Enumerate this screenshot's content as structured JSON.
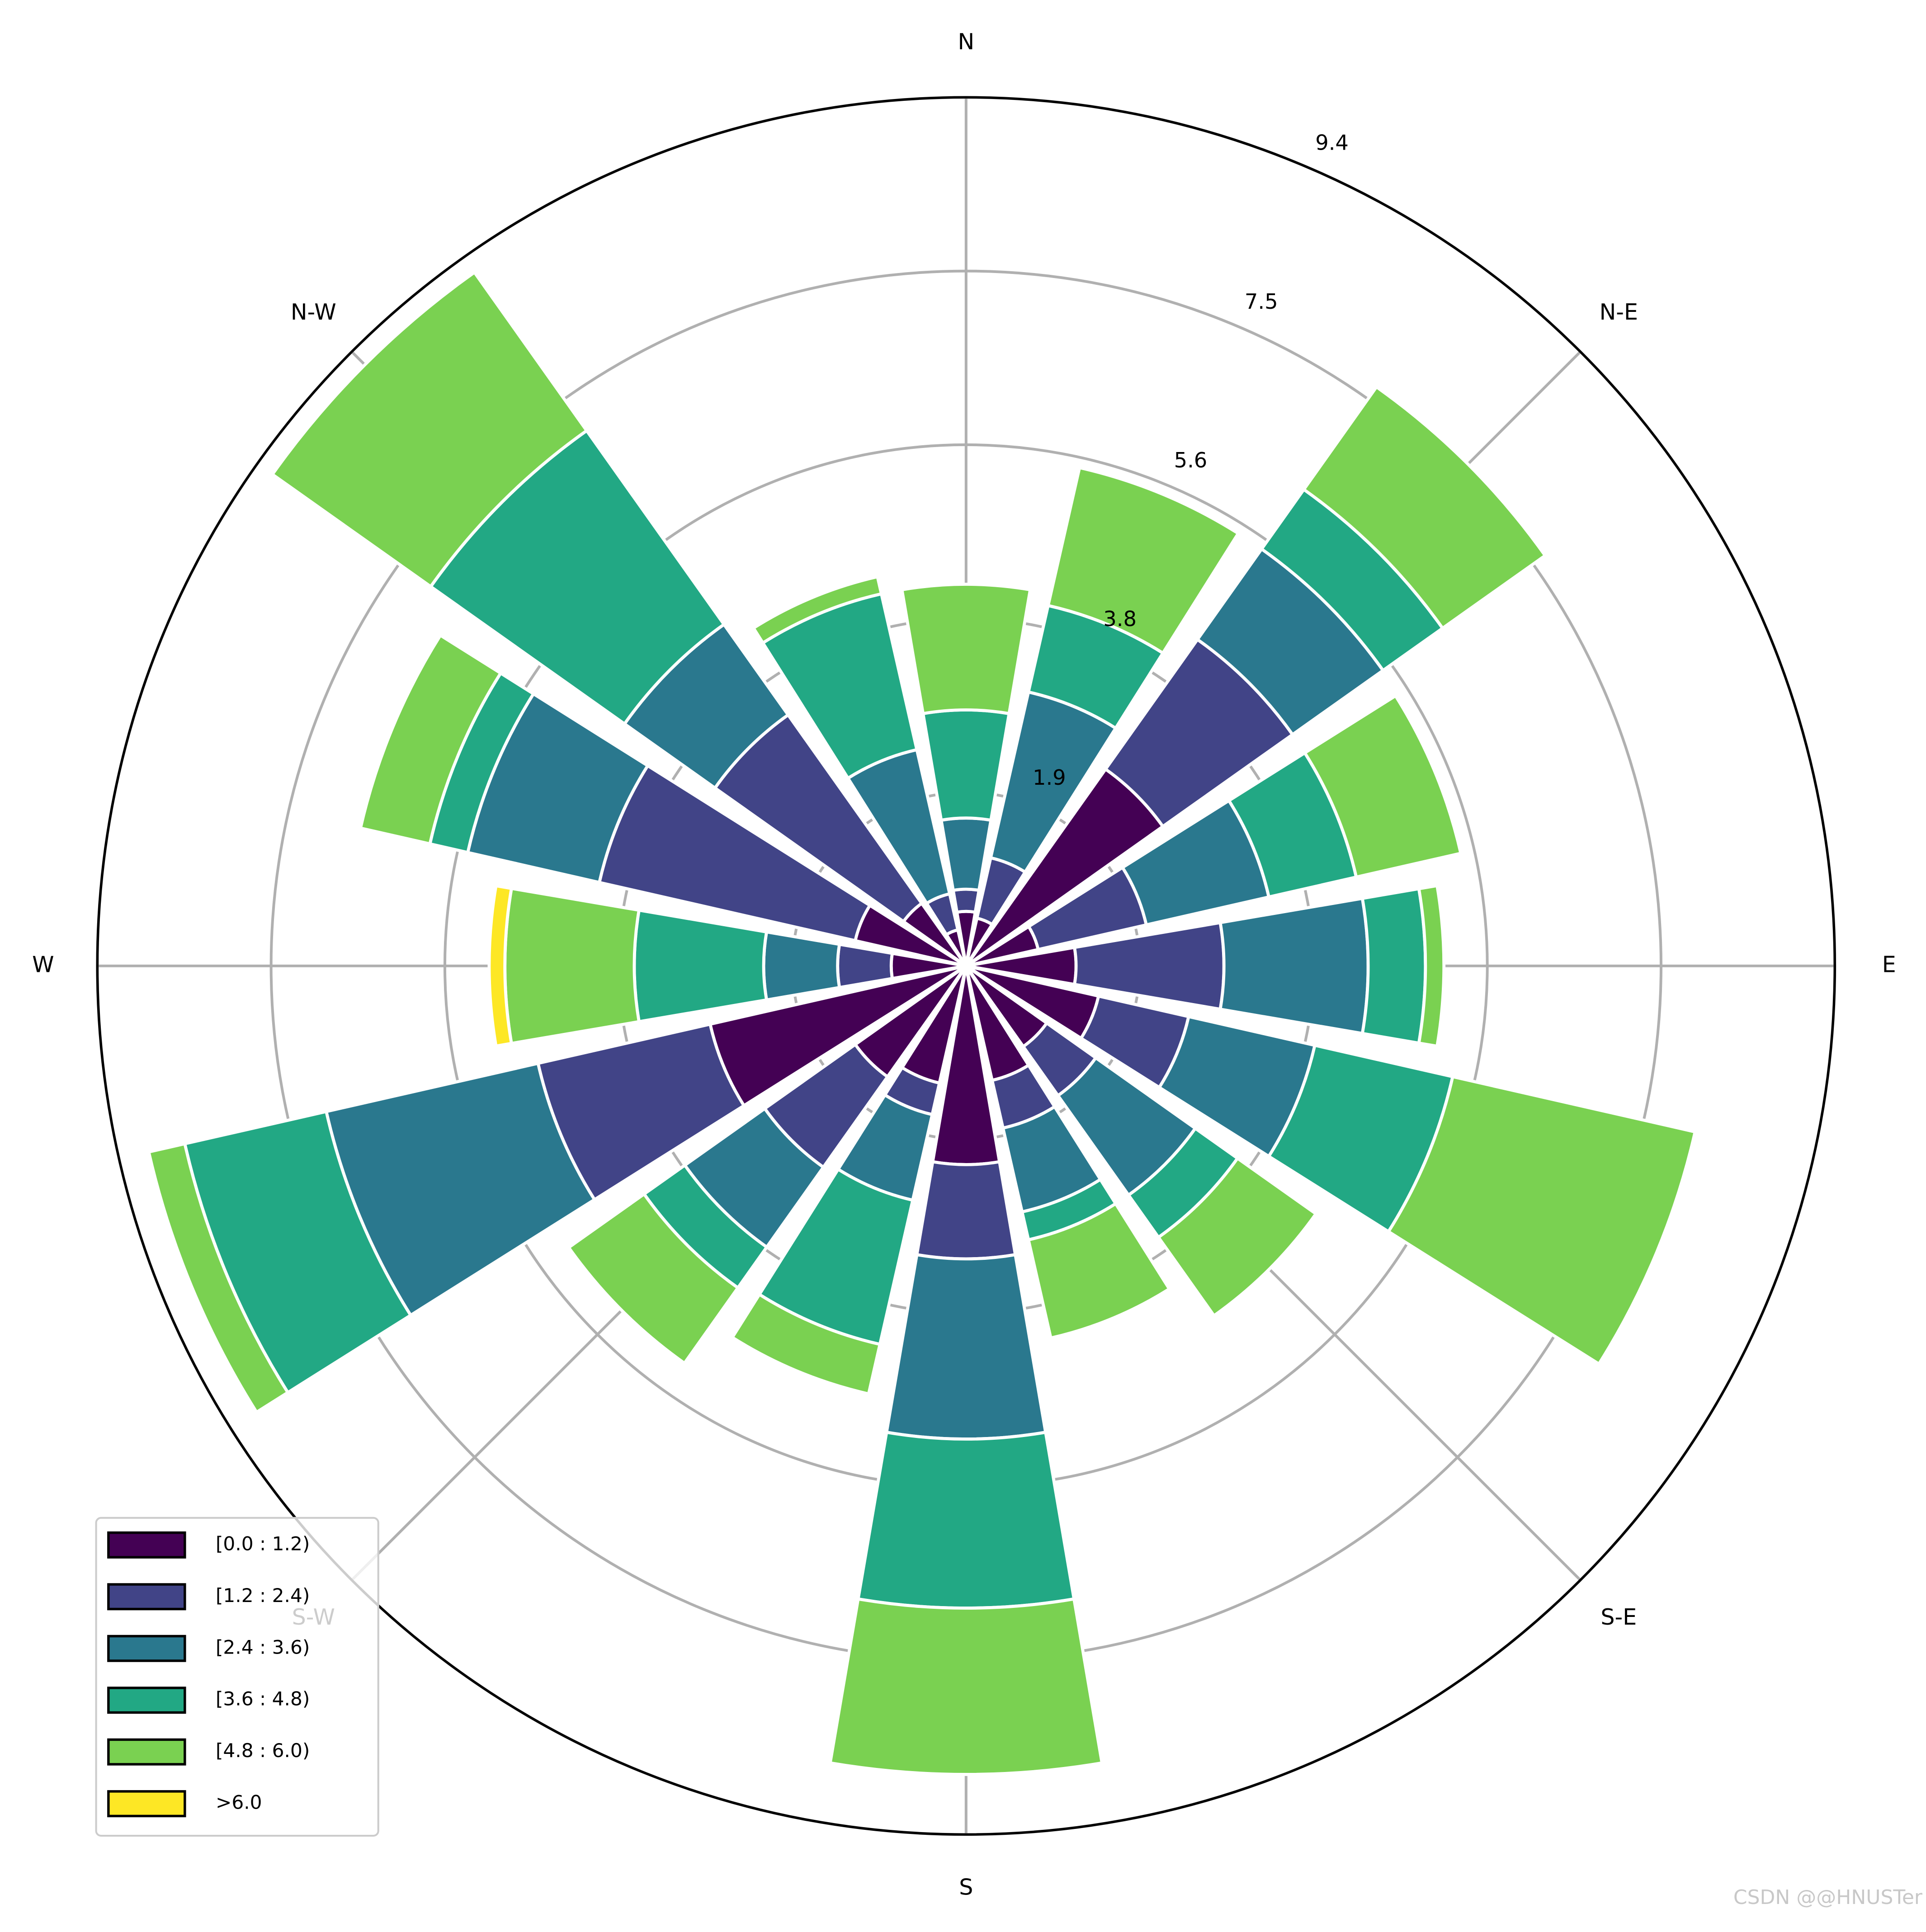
{
  "chart_data": {
    "type": "windrose",
    "categories": [
      "N",
      null,
      "N-E",
      null,
      "E",
      null,
      "S-E",
      null,
      "S",
      null,
      "S-W",
      null,
      "W",
      null,
      "N-W",
      null
    ],
    "series": [
      {
        "name": "[0.0 : 1.2)",
        "color": "#440154",
        "values": [
          0.59,
          0.53,
          2.61,
          0.8,
          1.19,
          1.47,
          1.07,
          1.27,
          2.15,
          1.3,
          1.47,
          2.84,
          0.81,
          1.23,
          0.83,
          0.4
        ]
      },
      {
        "name": "[1.2 : 2.4)",
        "color": "#414487",
        "values": [
          0.24,
          0.67,
          1.72,
          1.2,
          1.6,
          1.0,
          0.65,
          0.53,
          1.02,
          0.35,
          1.2,
          1.91,
          0.58,
          2.84,
          2.5,
          0.4
        ]
      },
      {
        "name": "[2.4 : 3.6)",
        "color": "#2a788e",
        "values": [
          0.77,
          1.84,
          1.2,
          1.36,
          1.56,
          1.4,
          1.32,
          0.93,
          1.95,
          0.95,
          1.06,
          2.35,
          0.8,
          1.46,
          1.2,
          1.6
        ]
      },
      {
        "name": "[3.6 : 4.8)",
        "color": "#22a884",
        "values": [
          1.17,
          0.96,
          0.79,
          0.97,
          0.62,
          1.53,
          0.56,
          0.31,
          1.83,
          1.6,
          0.54,
          1.57,
          1.4,
          0.42,
          2.57,
          1.73
        ]
      },
      {
        "name": "[4.8 : 6.0)",
        "color": "#7ad151",
        "values": [
          1.36,
          1.53,
          1.36,
          1.16,
          0.2,
          2.69,
          1.04,
          1.09,
          1.8,
          0.55,
          1.0,
          0.4,
          1.4,
          0.77,
          2.1,
          0.19
        ]
      },
      {
        "name": ">6.0",
        "color": "#fde725",
        "values": [
          0,
          0,
          0,
          0,
          0,
          0,
          0,
          0,
          0,
          0,
          0,
          0,
          0.17,
          0,
          0,
          0
        ]
      }
    ],
    "ylim": [
      0,
      9.4
    ],
    "yticks": [
      {
        "value": 1.88,
        "label": "1.9"
      },
      {
        "value": 3.76,
        "label": "3.8"
      },
      {
        "value": 5.64,
        "label": "5.6"
      },
      {
        "value": 7.52,
        "label": "7.5"
      },
      9.4
    ],
    "grid": true,
    "legend_position": "lower-left",
    "watermark": "CSDN @@HNUSTer"
  }
}
